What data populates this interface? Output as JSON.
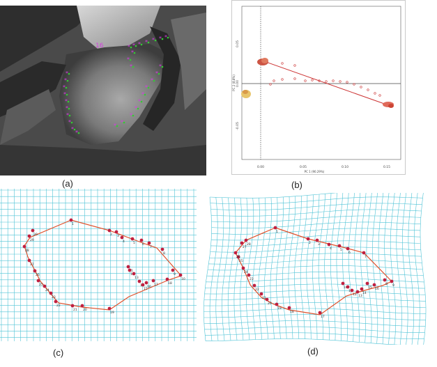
{
  "figure": {
    "captions": {
      "a": "(a)",
      "b": "(b)",
      "c": "(c)",
      "d": "(d)"
    },
    "panel_a": {
      "label": "16",
      "marker_color": "#d43ee0",
      "landmark_color": "#33cc33"
    },
    "panel_b": {
      "axis_x_label": "PC 1 (90.29%)",
      "axis_y_label": "PC 2 (8.8%)",
      "x_ticks": [
        "0.00",
        "0.05",
        "0.10",
        "0.15"
      ],
      "y_ticks": [
        "0.05",
        "0.00",
        "-0.05"
      ],
      "line_color": "#cc3333",
      "point_color": "#cc3333"
    },
    "panel_c": {
      "grid_color": "#4fc3d6",
      "outline_color": "#e0502a",
      "landmark_color": "#c02040",
      "landmark_labels": [
        "1",
        "2",
        "3",
        "4",
        "5",
        "6",
        "7",
        "8",
        "9",
        "10",
        "11",
        "12",
        "13",
        "14",
        "15",
        "16",
        "17",
        "18",
        "19",
        "20",
        "21",
        "22",
        "23",
        "24",
        "25",
        "26",
        "27",
        "28",
        "29",
        "30"
      ]
    },
    "panel_d": {
      "grid_color": "#4fc3d6",
      "outline_color": "#e0502a",
      "landmark_color": "#c02040"
    }
  }
}
